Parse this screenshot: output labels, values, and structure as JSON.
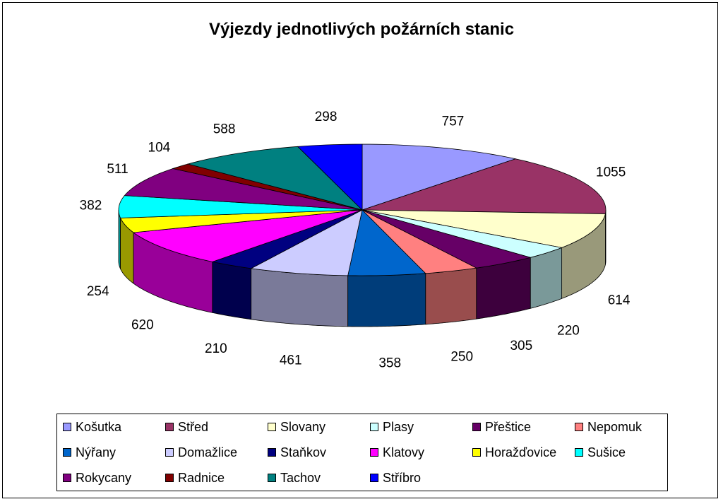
{
  "chart_data": {
    "type": "pie",
    "title": "Výjezdy jednotlivých požárních stanic",
    "categories": [
      "Košutka",
      "Střed",
      "Slovany",
      "Plasy",
      "Přeštice",
      "Nepomuk",
      "Nýřany",
      "Domažlice",
      "Staňkov",
      "Klatovy",
      "Horažďovice",
      "Sušice",
      "Rokycany",
      "Radnice",
      "Tachov",
      "Stříbro"
    ],
    "values": [
      757,
      1055,
      614,
      220,
      305,
      250,
      358,
      461,
      210,
      620,
      254,
      382,
      511,
      104,
      588,
      298
    ],
    "colors": [
      "#9999FF",
      "#993366",
      "#FFFFCC",
      "#CCFFFF",
      "#660066",
      "#FF8080",
      "#0066CC",
      "#CCCCFF",
      "#000080",
      "#FF00FF",
      "#FFFF00",
      "#00FFFF",
      "#800080",
      "#800000",
      "#008080",
      "#0000FF"
    ],
    "legend_position": "bottom",
    "style": "3d"
  }
}
